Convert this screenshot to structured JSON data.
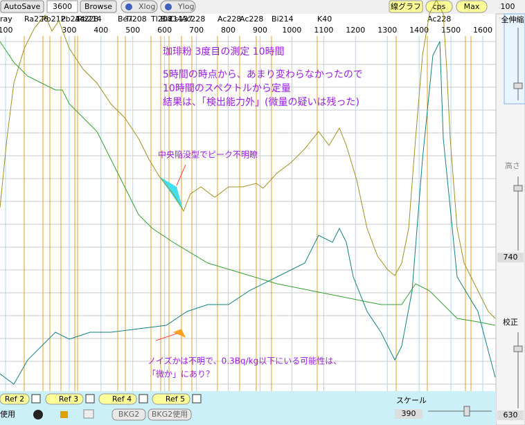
{
  "toolbar": {
    "autosave": "AutoSave",
    "time": "3600",
    "browse": "Browse",
    "xlog": "Xlog",
    "ylog": "Ylog",
    "graph_type": "線グラフ",
    "unit": "cps",
    "max": "Max",
    "zoom_value": "100"
  },
  "side_panel": {
    "zoom_all": "全伸縮",
    "height": "高さ",
    "height_value": "740",
    "calibration": "校正",
    "calibration_value": "630"
  },
  "peak_labels": [
    "ray",
    "Ra226",
    "Pb212",
    "Pb214",
    "Ac228",
    "Pb214",
    "Be7",
    "Tl208",
    "Tl208",
    "Bi214",
    "Cs137",
    "Ac228",
    "Ac228",
    "Ac228",
    "Bi214",
    "K40",
    "Ac228"
  ],
  "axis": {
    "xticks": [
      100,
      300,
      400,
      500,
      600,
      700,
      800,
      900,
      1000,
      1100,
      1200,
      1300,
      1400,
      1500,
      1600
    ],
    "xlim": [
      100,
      1650
    ]
  },
  "annotations": {
    "title": "珈琲粉 3度目の測定 10時間",
    "line1": "5時間の時点から、あまり変わらなかったので",
    "line2": "10時間のスペクトルから定量",
    "line3": "結果は、「検出能力外」(微量の疑いは残った)",
    "peak_note": "中央陥没型でピーク不明瞭",
    "noise_note1": "ノイズかは不明で、0.3Bq/kg以下にいる可能性は、",
    "noise_note2": "「微か」にあり？"
  },
  "bottom": {
    "ref2": "Ref 2",
    "ref3": "Ref 3",
    "ref4": "Ref 4",
    "ref5": "Ref 5",
    "use": "使用",
    "bkg2": "BKG2",
    "bkg2_use": "BKG2使用",
    "scale": "スケール",
    "scale_value": "390"
  }
}
